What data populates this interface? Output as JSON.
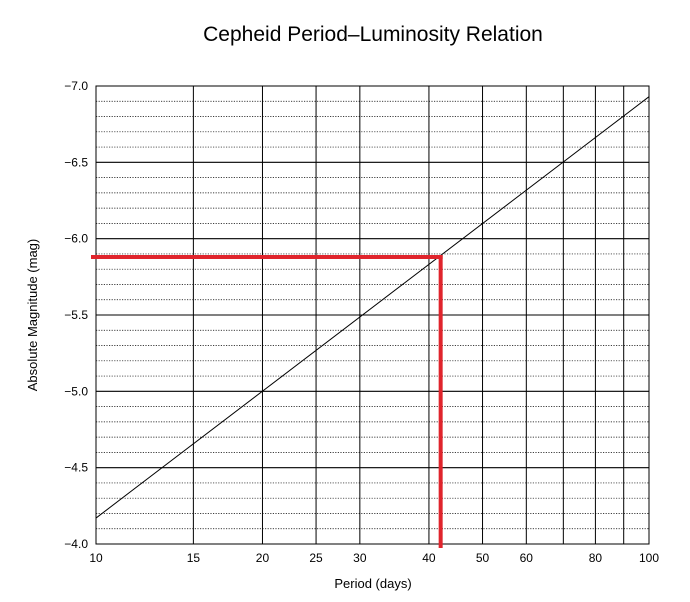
{
  "chart_data": {
    "type": "line",
    "title": "Cepheid Period–Luminosity Relation",
    "xlabel": "Period (days)",
    "ylabel": "Absolute Magnitude (mag)",
    "x_scale": "log",
    "xlim": [
      10,
      100
    ],
    "ylim": [
      -4.0,
      -7.0
    ],
    "y_inverted": true,
    "x_ticks": [
      10,
      15,
      20,
      25,
      30,
      40,
      50,
      60,
      80,
      100
    ],
    "x_tick_labels": [
      "10",
      "15",
      "20",
      "25",
      "30",
      "40",
      "50",
      "60",
      "80",
      "100"
    ],
    "y_ticks": [
      -7.0,
      -6.5,
      -6.0,
      -5.5,
      -5.0,
      -4.5,
      -4.0
    ],
    "y_tick_labels": [
      "−7.0",
      "−6.5",
      "−6.0",
      "−5.5",
      "−5.0",
      "−4.5",
      "−4.0"
    ],
    "x_major_grid": [
      15,
      20,
      25,
      30,
      40,
      50,
      60,
      70,
      80,
      90
    ],
    "y_minor_grid_step": 0.1,
    "grid": true,
    "series": [
      {
        "x": [
          10,
          100
        ],
        "y": [
          -4.17,
          -6.93
        ],
        "color": "#000000"
      }
    ],
    "annotations": [
      {
        "type": "lookup",
        "x": 42,
        "y": -5.88,
        "color": "#e0242c"
      }
    ]
  }
}
